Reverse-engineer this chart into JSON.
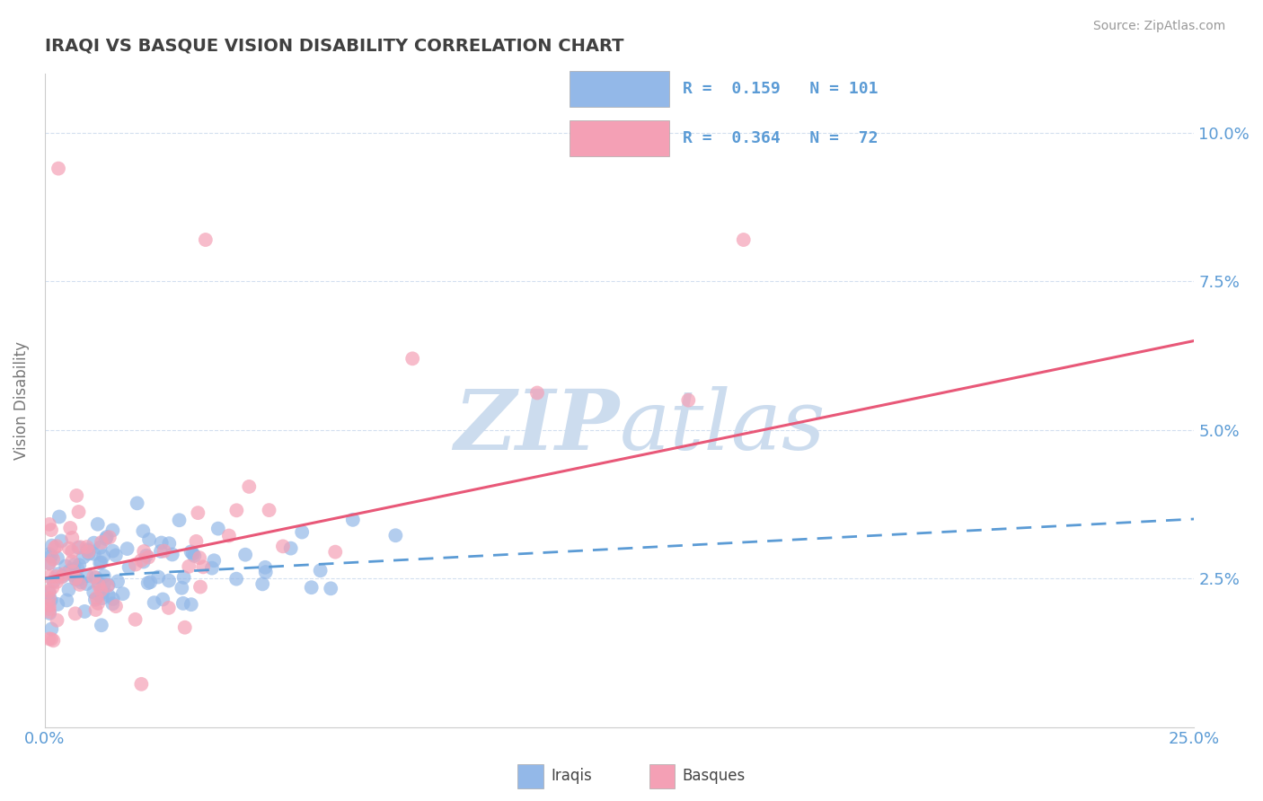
{
  "title": "IRAQI VS BASQUE VISION DISABILITY CORRELATION CHART",
  "source": "Source: ZipAtlas.com",
  "ylabel": "Vision Disability",
  "ytick_labels": [
    "2.5%",
    "5.0%",
    "7.5%",
    "10.0%"
  ],
  "ytick_values": [
    0.025,
    0.05,
    0.075,
    0.1
  ],
  "xlim": [
    0.0,
    0.25
  ],
  "ylim": [
    0.0,
    0.11
  ],
  "xtick_show": [
    0.0,
    0.25
  ],
  "xtick_labels": [
    "0.0%",
    "25.0%"
  ],
  "Iraqi_color": "#93b8e8",
  "Basque_color": "#f4a0b5",
  "trend_Iraqi_color": "#5b9bd5",
  "trend_Basque_color": "#e85878",
  "background_color": "#ffffff",
  "watermark_color": "#ccdcee",
  "legend_Iraqi_R": "0.159",
  "legend_Iraqi_N": "101",
  "legend_Basque_R": "0.364",
  "legend_Basque_N": "72",
  "Iraqi_R": 0.159,
  "Iraqi_N": 101,
  "Basque_R": 0.364,
  "Basque_N": 72,
  "trend_Iraqi_start_x": 0.0,
  "trend_Iraqi_start_y": 0.025,
  "trend_Iraqi_end_x": 0.25,
  "trend_Iraqi_end_y": 0.035,
  "trend_Basque_start_x": 0.0,
  "trend_Basque_start_y": 0.025,
  "trend_Basque_end_x": 0.25,
  "trend_Basque_end_y": 0.065
}
